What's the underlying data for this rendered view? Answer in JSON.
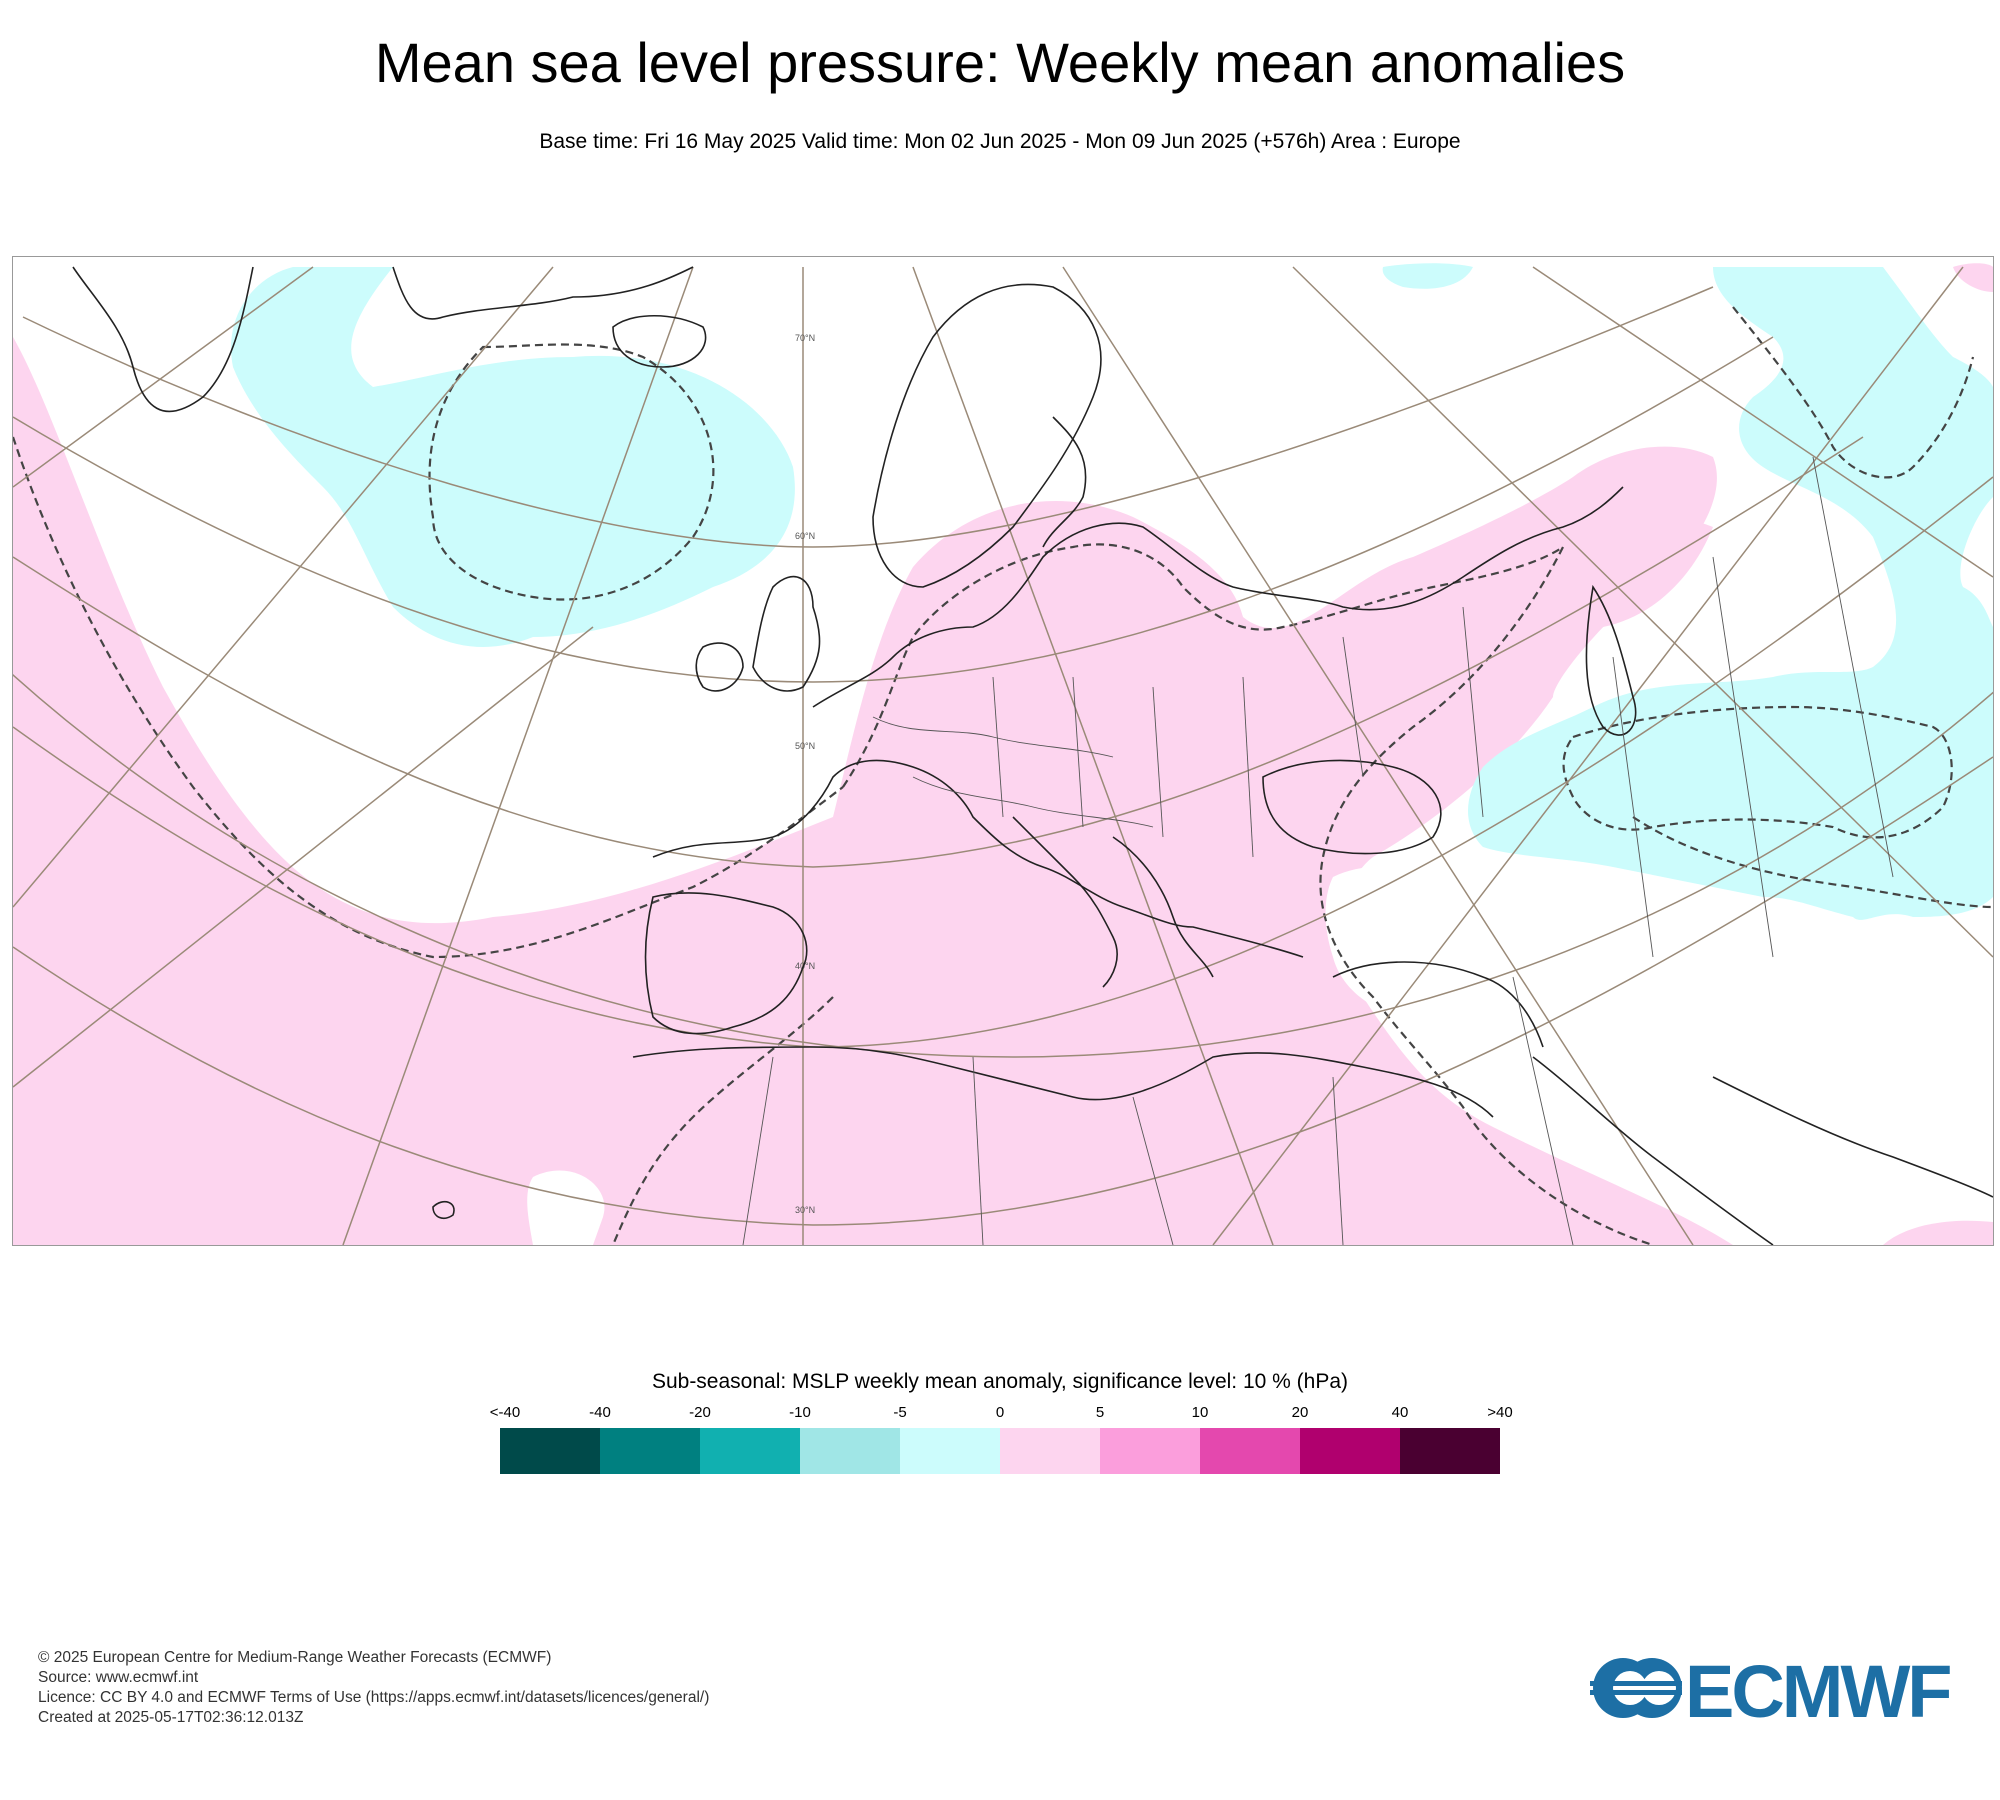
{
  "title": "Mean sea level pressure: Weekly mean anomalies",
  "subtitle": "Base time: Fri 16 May 2025 Valid time: Mon 02 Jun 2025 - Mon 09 Jun 2025 (+576h) Area : Europe",
  "map": {
    "lat_labels": [
      "70°N",
      "60°N",
      "50°N",
      "40°N",
      "30°N"
    ]
  },
  "legend": {
    "title": "Sub-seasonal: MSLP weekly mean anomaly, significance level: 10 % (hPa)",
    "ticks": [
      "<-40",
      "-40",
      "-20",
      "-10",
      "-5",
      "0",
      "5",
      "10",
      "20",
      "40",
      ">40"
    ],
    "colors": [
      "#004a4a",
      "#008080",
      "#11b0b0",
      "#a0e6e6",
      "#ccfcfc",
      "#fdd5ef",
      "#fb9edc",
      "#e448ae",
      "#b0006e",
      "#4a0031"
    ]
  },
  "footer": {
    "copyright": "© 2025 European Centre for Medium-Range Weather Forecasts (ECMWF)",
    "source": "Source: www.ecmwf.int",
    "licence": "Licence: CC BY 4.0 and ECMWF Terms of Use (https://apps.ecmwf.int/datasets/licences/general/)",
    "created": "Created at 2025-05-17T02:36:12.013Z"
  },
  "logo": {
    "text": "ECMWF",
    "color": "#1d6fa5"
  }
}
